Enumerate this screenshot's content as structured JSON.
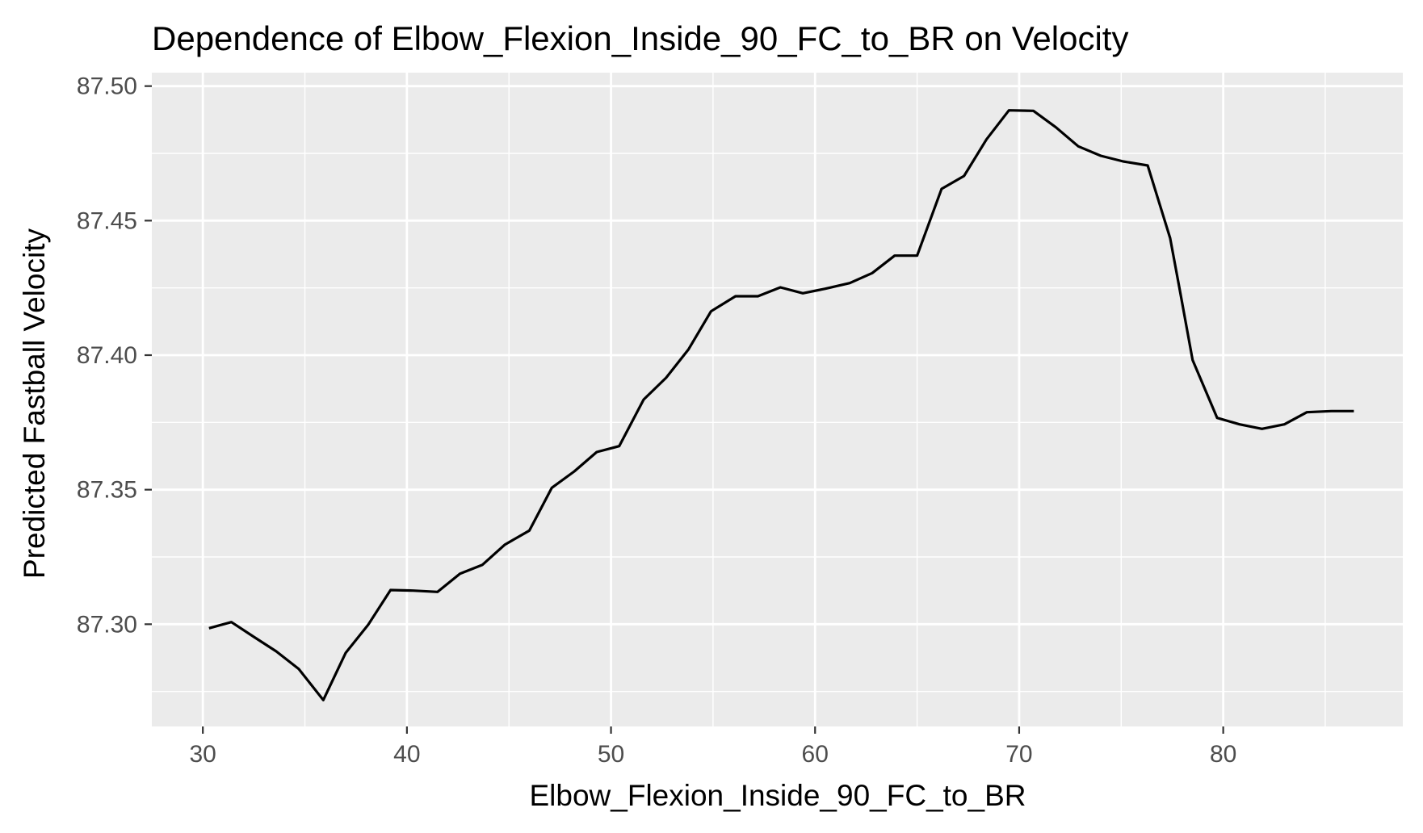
{
  "chart_data": {
    "type": "line",
    "title": "Dependence of Elbow_Flexion_Inside_90_FC_to_BR on Velocity",
    "xlabel": "Elbow_Flexion_Inside_90_FC_to_BR",
    "ylabel": "Predicted Fastball Velocity",
    "xlim": [
      27.5,
      88.8
    ],
    "ylim": [
      87.262,
      87.505
    ],
    "xticks": [
      30,
      40,
      50,
      60,
      70,
      80
    ],
    "xtick_labels": [
      "30",
      "40",
      "50",
      "60",
      "70",
      "80"
    ],
    "yticks": [
      87.3,
      87.35,
      87.4,
      87.45,
      87.5
    ],
    "ytick_labels": [
      "87.30",
      "87.35",
      "87.40",
      "87.45",
      "87.50"
    ],
    "grid": true,
    "legend": "none",
    "colors": {
      "panel": "#ebebeb",
      "grid": "#ffffff",
      "line": "#000000",
      "tick": "#333333"
    },
    "series": [
      {
        "x": [
          30.3,
          31.4,
          32.5,
          33.6,
          34.7,
          35.9,
          37.0,
          38.1,
          39.2,
          40.3,
          41.5,
          42.6,
          43.7,
          44.8,
          46.0,
          47.1,
          48.2,
          49.3,
          50.4,
          51.6,
          52.7,
          53.8,
          54.9,
          56.1,
          57.2,
          58.3,
          59.4,
          60.5,
          61.7,
          62.8,
          63.9,
          65.0,
          66.2,
          67.3,
          68.4,
          69.5,
          70.7,
          71.8,
          72.9,
          74.0,
          75.1,
          76.3,
          77.4,
          77.9,
          78.5,
          79.7,
          80.8,
          81.9,
          83.0,
          84.1,
          85.3,
          86.4
        ],
        "y": [
          87.2985,
          87.3008,
          87.2953,
          87.2899,
          87.2834,
          87.2718,
          87.2894,
          87.2998,
          87.3127,
          87.3125,
          87.312,
          87.3188,
          87.3221,
          87.3296,
          87.3348,
          87.3507,
          87.3568,
          87.364,
          87.3662,
          87.3835,
          87.3916,
          87.4022,
          87.4163,
          87.4219,
          87.4219,
          87.4252,
          87.423,
          87.4247,
          87.4268,
          87.4305,
          87.437,
          87.437,
          87.4618,
          87.4666,
          87.4802,
          87.491,
          87.4908,
          87.4847,
          87.4776,
          87.4741,
          87.472,
          87.4705,
          87.4435,
          87.423,
          87.3982,
          87.3767,
          87.3743,
          87.3726,
          87.3743,
          87.3788,
          87.3792,
          87.3792
        ]
      }
    ]
  }
}
